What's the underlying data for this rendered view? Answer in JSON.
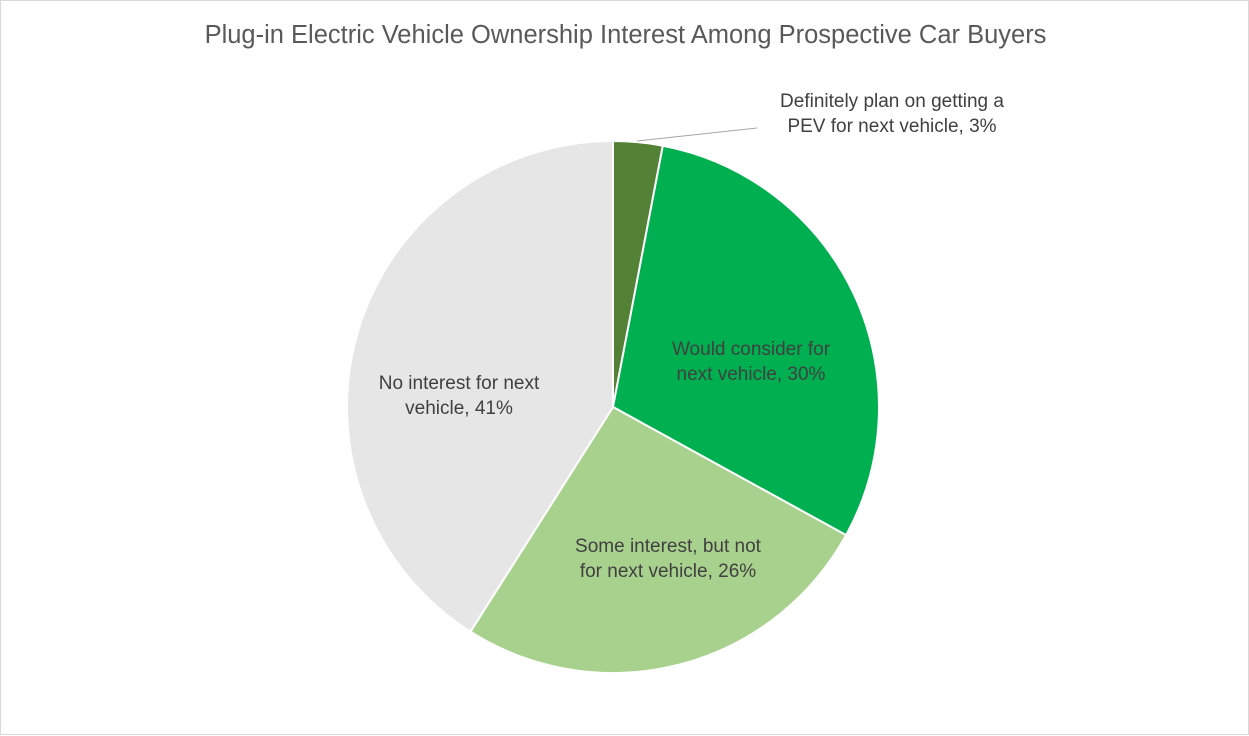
{
  "chart_data": {
    "type": "pie",
    "title": "Plug-in Electric Vehicle Ownership Interest Among Prospective Car Buyers",
    "slices": [
      {
        "name": "Definitely plan on getting a PEV for next vehicle",
        "value": 3,
        "label_lines": [
          "Definitely plan on getting a",
          "PEV for next vehicle, 3%"
        ],
        "color": "#538135"
      },
      {
        "name": "Would consider for next vehicle",
        "value": 30,
        "label_lines": [
          "Would consider for",
          "next vehicle, 30%"
        ],
        "color": "#00b050"
      },
      {
        "name": "Some interest, but not for next vehicle",
        "value": 26,
        "label_lines": [
          "Some interest, but not",
          "for next vehicle, 26%"
        ],
        "color": "#a9d18e"
      },
      {
        "name": "No interest for next vehicle",
        "value": 41,
        "label_lines": [
          "No interest for next",
          "vehicle, 41%"
        ],
        "color": "#e7e6e6"
      }
    ],
    "start_angle": "top",
    "direction": "clockwise",
    "legend": "none",
    "data_labels": "category, value"
  }
}
